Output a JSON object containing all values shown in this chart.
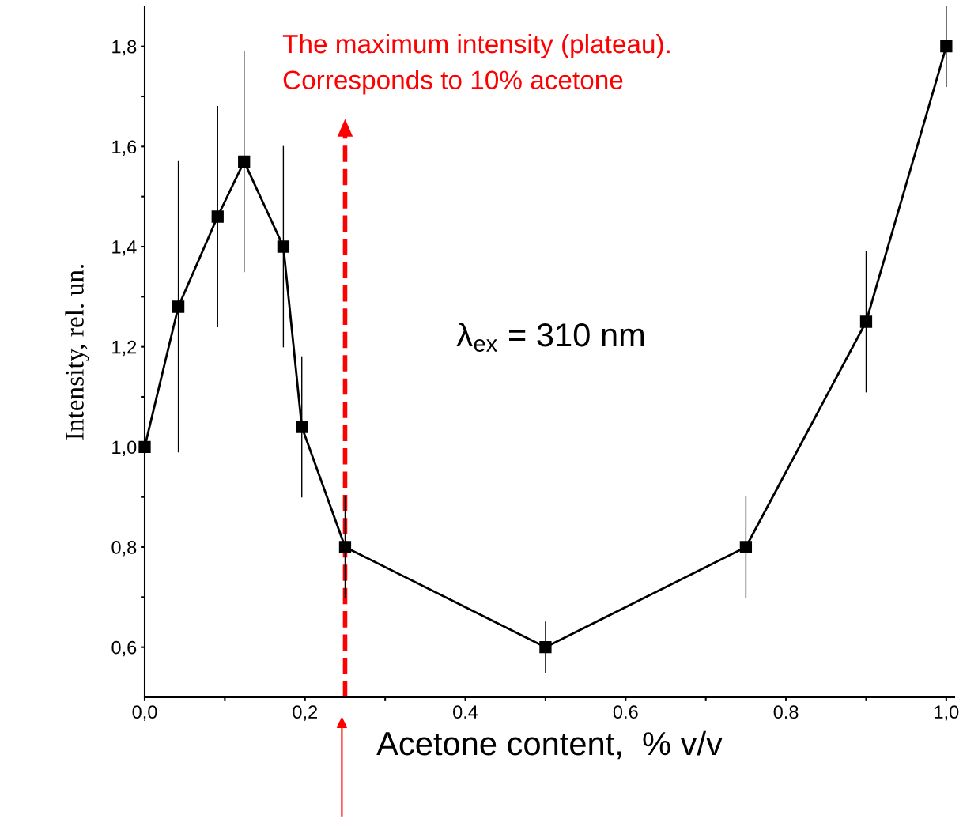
{
  "chart_data": {
    "type": "line",
    "xlabel": "Acetone content,  % v/v",
    "ylabel": "Intensity, rel. un.",
    "x": [
      0.0,
      0.042,
      0.091,
      0.124,
      0.173,
      0.196,
      0.25,
      0.5,
      0.75,
      0.9,
      1.0
    ],
    "series": [
      {
        "color": "#000000",
        "values": [
          1.0,
          1.28,
          1.46,
          1.57,
          1.4,
          1.04,
          0.8,
          0.6,
          0.8,
          1.25,
          1.8
        ],
        "errors": [
          null,
          0.29,
          0.22,
          0.22,
          0.2,
          0.14,
          0.1,
          0.05,
          0.1,
          0.14,
          0.08
        ]
      }
    ],
    "marker": "square",
    "line_style": "solid",
    "grid": false,
    "legend": false,
    "xlim": [
      0,
      1.01
    ],
    "ylim": [
      0.5,
      1.88
    ],
    "xticks": [
      {
        "value": 0,
        "label": "0,0"
      },
      {
        "value": 0.1,
        "label": null
      },
      {
        "value": 0.2,
        "label": "0,2"
      },
      {
        "value": 0.3,
        "label": null
      },
      {
        "value": 0.4,
        "label": "0.4"
      },
      {
        "value": 0.5,
        "label": null
      },
      {
        "value": 0.6,
        "label": "0.6"
      },
      {
        "value": 0.7,
        "label": null
      },
      {
        "value": 0.8,
        "label": "0.8"
      },
      {
        "value": 0.9,
        "label": null
      },
      {
        "value": 1.0,
        "label": "1,0"
      }
    ],
    "yticks": [
      {
        "value": 0.6,
        "label": "0,6"
      },
      {
        "value": 0.7,
        "label": null
      },
      {
        "value": 0.8,
        "label": "0,8"
      },
      {
        "value": 0.9,
        "label": null
      },
      {
        "value": 1.0,
        "label": "1,0"
      },
      {
        "value": 1.1,
        "label": null
      },
      {
        "value": 1.2,
        "label": "1,2"
      },
      {
        "value": 1.3,
        "label": null
      },
      {
        "value": 1.4,
        "label": "1,4"
      },
      {
        "value": 1.5,
        "label": null
      },
      {
        "value": 1.6,
        "label": "1,6"
      },
      {
        "value": 1.7,
        "label": null
      },
      {
        "value": 1.8,
        "label": "1,8"
      }
    ],
    "ref_lines": [
      {
        "axis": "x",
        "value": 0.25,
        "color": "#ff0000",
        "line_style": "dashed"
      }
    ],
    "annotations": [
      "The maximum intensity (plateau).\nCorresponds to 10% acetone",
      "λ$_{ex}$ = 310 nm"
    ]
  }
}
